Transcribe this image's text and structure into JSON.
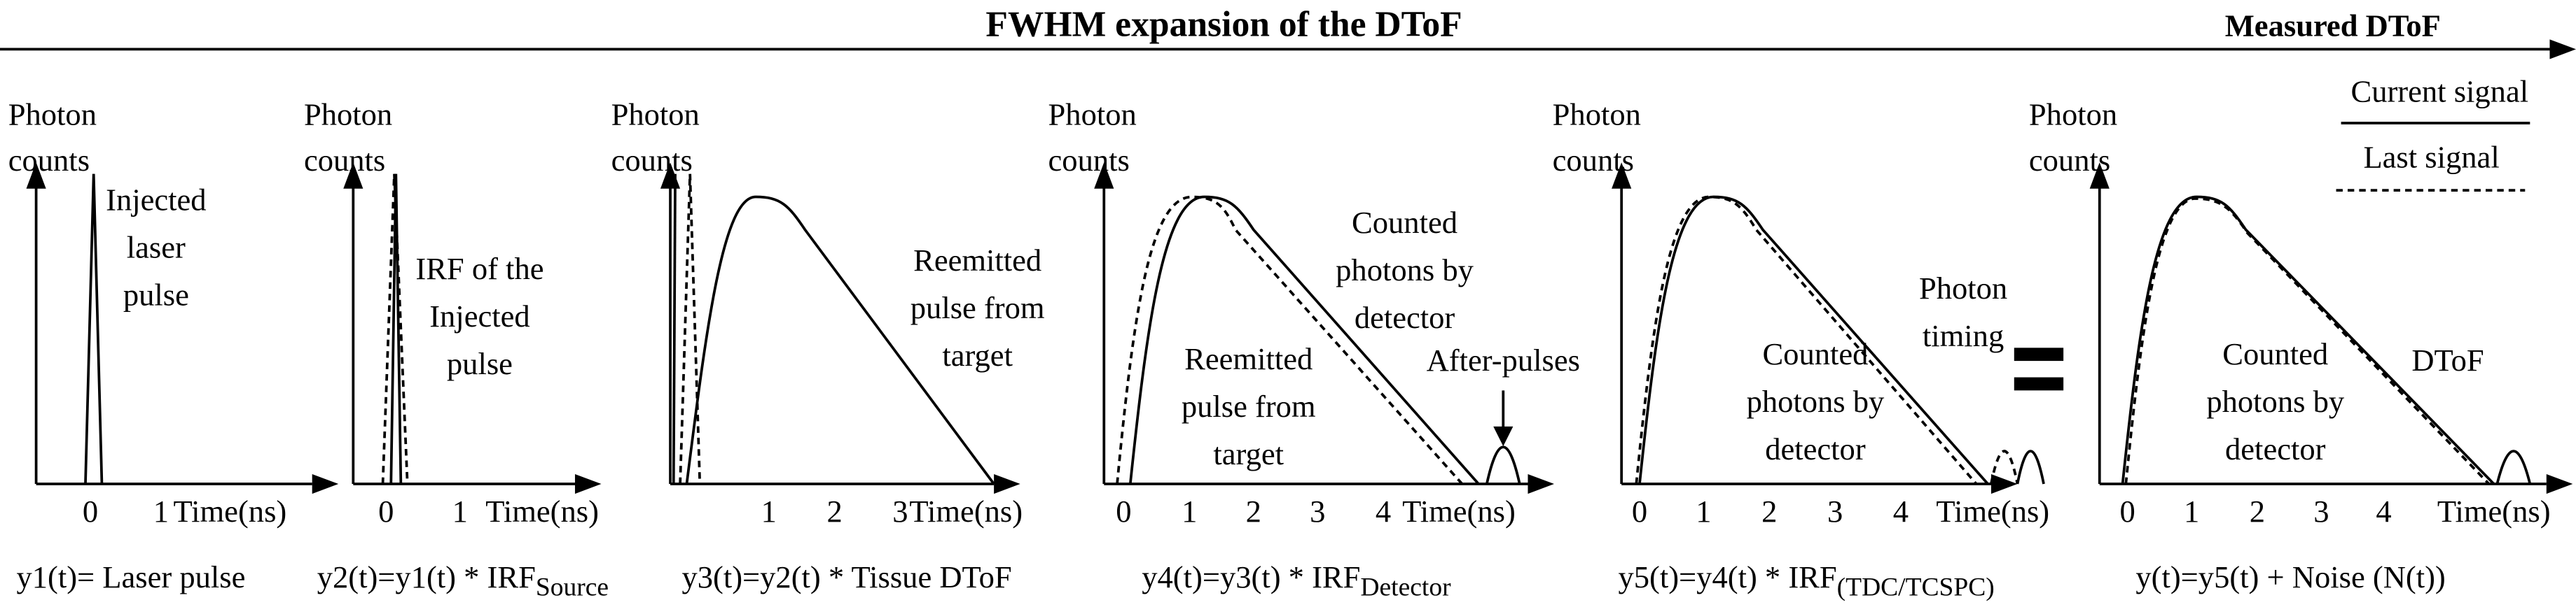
{
  "header": {
    "title": "FWHM expansion of the DToF",
    "measured": "Measured DToF"
  },
  "legend": {
    "current": "Current signal",
    "last": "Last signal"
  },
  "panels": [
    {
      "y_label": [
        "Photon",
        "counts"
      ],
      "ticks": [
        "0",
        "1"
      ],
      "x_label": "Time(ns)",
      "annotations": [
        [
          "Injected",
          "laser",
          "pulse"
        ]
      ],
      "equation": {
        "text": "y1(t)= Laser pulse"
      }
    },
    {
      "y_label": [
        "Photon",
        "counts"
      ],
      "ticks": [
        "0",
        "1"
      ],
      "x_label": "Time(ns)",
      "annotations": [
        [
          "IRF of the",
          "Injected",
          "pulse"
        ]
      ],
      "equation": {
        "text": "y2(t)=y1(t) * IRF",
        "sub": "Source"
      }
    },
    {
      "y_label": [
        "Photon",
        "counts"
      ],
      "ticks": [
        "1",
        "2",
        "3"
      ],
      "x_label": "Time(ns)",
      "annotations": [
        [
          "Reemitted",
          "pulse from",
          "target"
        ]
      ],
      "equation": {
        "text": "y3(t)=y2(t) * Tissue DToF"
      }
    },
    {
      "y_label": [
        "Photon",
        "counts"
      ],
      "ticks": [
        "0",
        "1",
        "2",
        "3",
        "4"
      ],
      "x_label": "Time(ns)",
      "annotations": [
        [
          "Counted",
          "photons by",
          "detector"
        ],
        [
          "Reemitted",
          "pulse from",
          "target"
        ],
        [
          "After-pulses"
        ]
      ],
      "equation": {
        "text": "y4(t)=y3(t) * IRF",
        "sub": "Detector"
      }
    },
    {
      "y_label": [
        "Photon",
        "counts"
      ],
      "ticks": [
        "0",
        "1",
        "2",
        "3",
        "4"
      ],
      "x_label": "Time(ns)",
      "annotations": [
        [
          "Photon",
          "timing"
        ],
        [
          "Counted",
          "photons by",
          "detector"
        ]
      ],
      "equation": {
        "text": "y5(t)=y4(t) * IRF",
        "sub": "(TDC/TCSPC)"
      }
    },
    {
      "y_label": [
        "Photon",
        "counts"
      ],
      "ticks": [
        "0",
        "1",
        "2",
        "3",
        "4"
      ],
      "x_label": "Time(ns)",
      "annotations": [
        [
          "Counted",
          "photons by",
          "detector"
        ],
        [
          "DToF"
        ]
      ],
      "equation": {
        "text": "y(t)=y5(t) + Noise (N(t))"
      }
    }
  ]
}
